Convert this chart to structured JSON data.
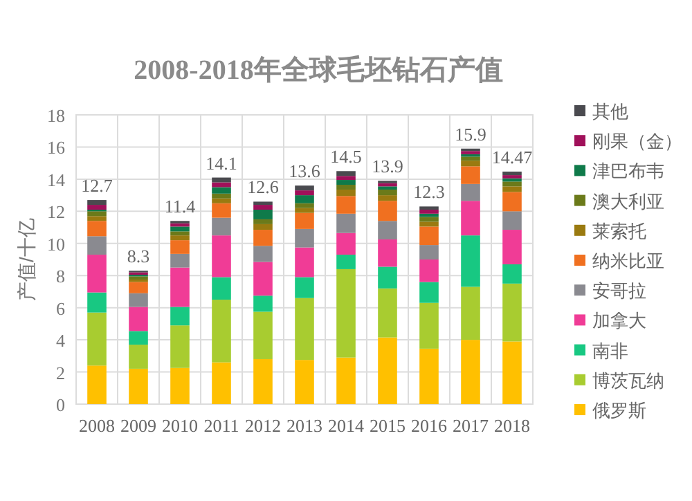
{
  "chart_data": {
    "type": "bar",
    "stacked": true,
    "title": "2008-2018年全球毛坯钻石产值",
    "ylabel": "产值/十亿",
    "categories": [
      "2008",
      "2009",
      "2010",
      "2011",
      "2012",
      "2013",
      "2014",
      "2015",
      "2016",
      "2017",
      "2018"
    ],
    "ylim": [
      0,
      18
    ],
    "yticks": [
      0,
      2,
      4,
      6,
      8,
      10,
      12,
      14,
      16,
      18
    ],
    "grid": true,
    "legend": "right",
    "totals": [
      "12.7",
      "8.3",
      "11.4",
      "14.1",
      "12.6",
      "13.6",
      "14.5",
      "13.9",
      "12.3",
      "15.9",
      "14.47"
    ],
    "series": [
      {
        "name": "俄罗斯",
        "color": "#ffc000",
        "values": [
          2.4,
          2.2,
          2.25,
          2.6,
          2.8,
          2.75,
          2.9,
          4.15,
          3.45,
          4.0,
          3.9
        ]
      },
      {
        "name": "博茨瓦纳",
        "color": "#a8cc30",
        "values": [
          3.3,
          1.5,
          2.65,
          3.9,
          2.95,
          3.85,
          5.5,
          3.05,
          2.85,
          3.3,
          3.6
        ]
      },
      {
        "name": "南非",
        "color": "#18c882",
        "values": [
          1.25,
          0.85,
          1.15,
          1.4,
          1.0,
          1.3,
          0.9,
          1.35,
          1.3,
          3.2,
          1.2
        ]
      },
      {
        "name": "加拿大",
        "color": "#f03c96",
        "values": [
          2.35,
          1.5,
          2.45,
          2.6,
          2.1,
          1.85,
          1.35,
          1.7,
          1.4,
          2.15,
          2.15
        ]
      },
      {
        "name": "安哥拉",
        "color": "#8a8a90",
        "values": [
          1.15,
          0.85,
          0.85,
          1.1,
          1.0,
          1.15,
          1.2,
          1.15,
          0.9,
          1.05,
          1.15
        ]
      },
      {
        "name": "纳米比亚",
        "color": "#f07020",
        "values": [
          0.95,
          0.7,
          0.85,
          0.9,
          1.0,
          1.0,
          1.1,
          1.25,
          1.15,
          1.1,
          1.2
        ]
      },
      {
        "name": "莱索托",
        "color": "#9a7a10",
        "values": [
          0.3,
          0.15,
          0.3,
          0.3,
          0.35,
          0.3,
          0.4,
          0.35,
          0.3,
          0.35,
          0.35
        ]
      },
      {
        "name": "澳大利亚",
        "color": "#6b7a1a",
        "values": [
          0.3,
          0.2,
          0.25,
          0.3,
          0.3,
          0.3,
          0.3,
          0.35,
          0.3,
          0.25,
          0.3
        ]
      },
      {
        "name": "津巴布韦",
        "color": "#0f7a4a",
        "values": [
          0.1,
          0.1,
          0.3,
          0.4,
          0.6,
          0.5,
          0.3,
          0.2,
          0.2,
          0.15,
          0.2
        ]
      },
      {
        "name": "刚果（金）",
        "color": "#a0105a",
        "values": [
          0.3,
          0.15,
          0.2,
          0.3,
          0.3,
          0.3,
          0.25,
          0.2,
          0.25,
          0.2,
          0.2
        ]
      },
      {
        "name": "其他",
        "color": "#4a4a4f",
        "values": [
          0.3,
          0.1,
          0.15,
          0.3,
          0.2,
          0.3,
          0.3,
          0.15,
          0.2,
          0.15,
          0.22
        ]
      }
    ]
  }
}
